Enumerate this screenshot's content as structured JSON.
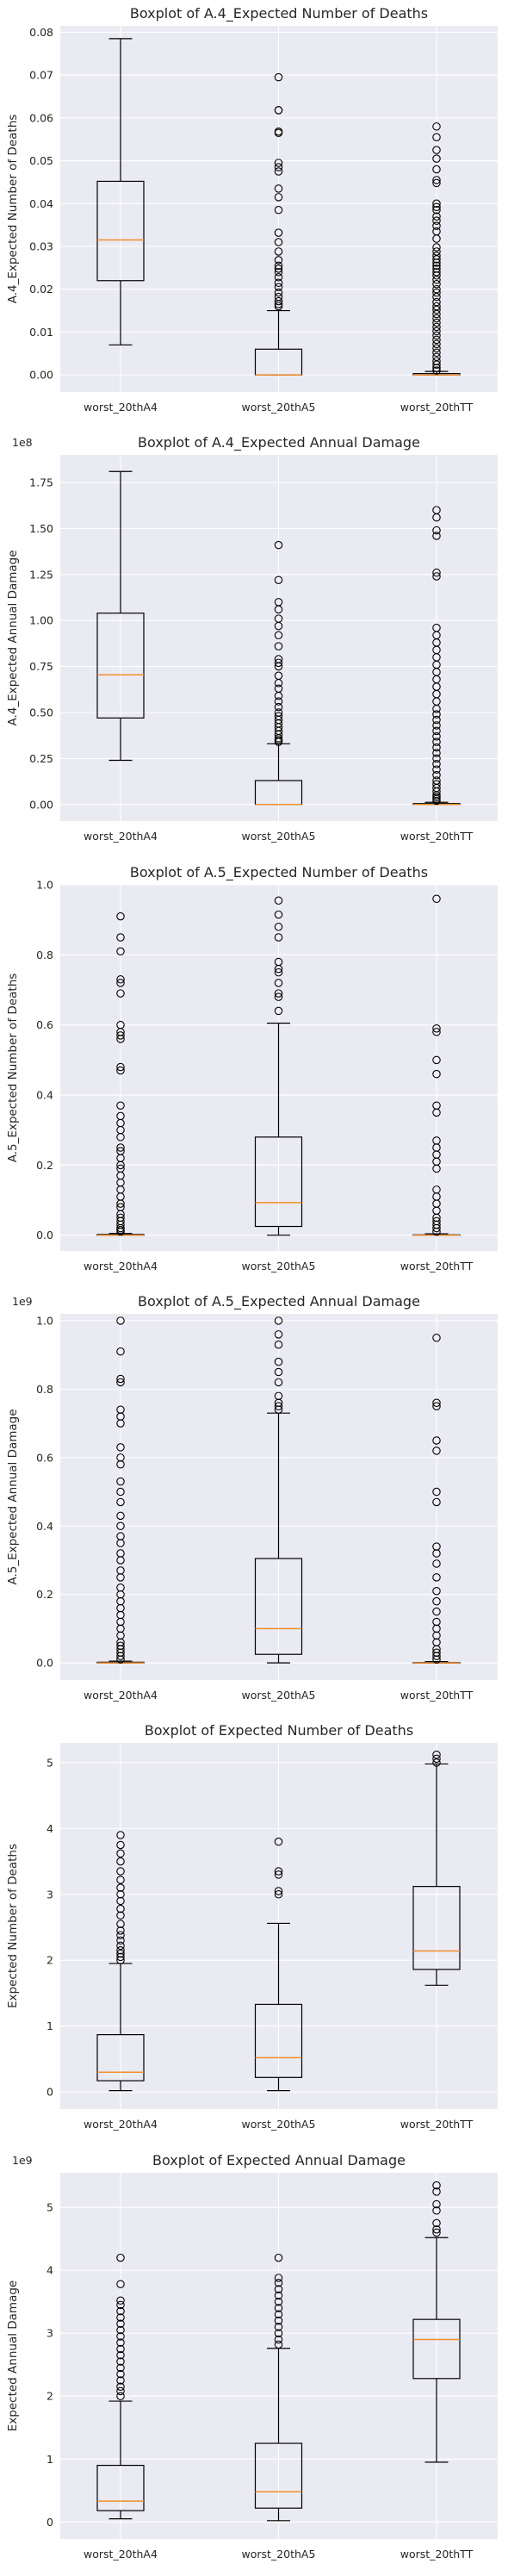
{
  "categories": [
    "worst_20thA4",
    "worst_20thA5",
    "worst_20thTT"
  ],
  "colors": {
    "plot_bg": "#eaeaf2",
    "grid": "#ffffff",
    "median": "#f28e2b",
    "box": "#000000"
  },
  "chart_data": [
    {
      "type": "box",
      "title": "Boxplot of A.4_Expected Number of Deaths",
      "ylabel": "A.4_Expected Number of Deaths",
      "multiplier": "",
      "ylim": [
        -0.004,
        0.0815
      ],
      "yticks": [
        0.0,
        0.01,
        0.02,
        0.03,
        0.04,
        0.05,
        0.06,
        0.07,
        0.08
      ],
      "yticklabels": [
        "0.00",
        "0.01",
        "0.02",
        "0.03",
        "0.04",
        "0.05",
        "0.06",
        "0.07",
        "0.08"
      ],
      "boxes": [
        {
          "whislo": 0.007,
          "q1": 0.022,
          "med": 0.0315,
          "q3": 0.0452,
          "whishi": 0.0785,
          "fliers": []
        },
        {
          "whislo": 0.0,
          "q1": 0.0,
          "med": 0.0,
          "q3": 0.006,
          "whishi": 0.015,
          "fliers": [
            0.0695,
            0.0618,
            0.0618,
            0.0568,
            0.0565,
            0.0495,
            0.0485,
            0.0475,
            0.0435,
            0.0415,
            0.0385,
            0.0332,
            0.031,
            0.0288,
            0.0268,
            0.0255,
            0.0248,
            0.024,
            0.0228,
            0.0215,
            0.0205,
            0.0192,
            0.0182,
            0.0172,
            0.0165,
            0.016
          ]
        },
        {
          "whislo": 0.0,
          "q1": 0.0,
          "med": 0.0,
          "q3": 0.0003,
          "whishi": 0.0008,
          "fliers": [
            0.058,
            0.0555,
            0.0525,
            0.0505,
            0.048,
            0.0455,
            0.0448,
            0.04,
            0.0392,
            0.0385,
            0.037,
            0.036,
            0.0348,
            0.0335,
            0.0318,
            0.0298,
            0.0288,
            0.0278,
            0.027,
            0.0262,
            0.0255,
            0.0248,
            0.024,
            0.0232,
            0.0222,
            0.0212,
            0.02,
            0.0192,
            0.0182,
            0.017,
            0.016,
            0.0152,
            0.0142,
            0.0132,
            0.0122,
            0.0112,
            0.0102,
            0.0092,
            0.0082,
            0.0072,
            0.0062,
            0.0052,
            0.0042,
            0.0032,
            0.0024,
            0.0016,
            0.001
          ]
        }
      ]
    },
    {
      "type": "box",
      "title": "Boxplot of A.4_Expected Annual Damage",
      "ylabel": "A.4_Expected Annual Damage",
      "multiplier": "1e8",
      "ylim": [
        -0.09,
        1.9
      ],
      "yticks": [
        0.0,
        0.25,
        0.5,
        0.75,
        1.0,
        1.25,
        1.5,
        1.75
      ],
      "yticklabels": [
        "0.00",
        "0.25",
        "0.50",
        "0.75",
        "1.00",
        "1.25",
        "1.50",
        "1.75"
      ],
      "boxes": [
        {
          "whislo": 0.24,
          "q1": 0.47,
          "med": 0.705,
          "q3": 1.04,
          "whishi": 1.81,
          "fliers": []
        },
        {
          "whislo": 0.0,
          "q1": 0.0,
          "med": 0.0,
          "q3": 0.13,
          "whishi": 0.33,
          "fliers": [
            1.41,
            1.22,
            1.1,
            1.06,
            1.01,
            0.97,
            0.92,
            0.86,
            0.79,
            0.77,
            0.75,
            0.7,
            0.66,
            0.63,
            0.59,
            0.56,
            0.53,
            0.5,
            0.48,
            0.46,
            0.44,
            0.42,
            0.4,
            0.38,
            0.36,
            0.35,
            0.34
          ]
        },
        {
          "whislo": 0.0,
          "q1": 0.0,
          "med": 0.0,
          "q3": 0.005,
          "whishi": 0.012,
          "fliers": [
            1.6,
            1.56,
            1.49,
            1.46,
            1.26,
            1.24,
            0.96,
            0.92,
            0.88,
            0.84,
            0.8,
            0.76,
            0.72,
            0.68,
            0.64,
            0.6,
            0.56,
            0.52,
            0.49,
            0.46,
            0.43,
            0.4,
            0.37,
            0.34,
            0.31,
            0.28,
            0.25,
            0.22,
            0.19,
            0.16,
            0.13,
            0.11,
            0.09,
            0.07,
            0.05,
            0.04,
            0.03,
            0.02
          ]
        }
      ]
    },
    {
      "type": "box",
      "title": "Boxplot of A.5_Expected Number of Deaths",
      "ylabel": "A.5_Expected Number of Deaths",
      "multiplier": "",
      "ylim": [
        -0.045,
        1.0
      ],
      "yticks": [
        0.0,
        0.2,
        0.4,
        0.6,
        0.8,
        1.0
      ],
      "yticklabels": [
        "0.0",
        "0.2",
        "0.4",
        "0.6",
        "0.8",
        "1.0"
      ],
      "boxes": [
        {
          "whislo": 0.0,
          "q1": 0.0,
          "med": 0.0,
          "q3": 0.002,
          "whishi": 0.005,
          "fliers": [
            0.91,
            0.85,
            0.81,
            0.73,
            0.72,
            0.69,
            0.6,
            0.58,
            0.57,
            0.56,
            0.48,
            0.47,
            0.37,
            0.34,
            0.32,
            0.3,
            0.28,
            0.25,
            0.24,
            0.22,
            0.2,
            0.19,
            0.17,
            0.15,
            0.13,
            0.11,
            0.09,
            0.08,
            0.06,
            0.05,
            0.04,
            0.03,
            0.02,
            0.015,
            0.01
          ]
        },
        {
          "whislo": 0.0,
          "q1": 0.025,
          "med": 0.093,
          "q3": 0.28,
          "whishi": 0.605,
          "fliers": [
            0.955,
            0.915,
            0.88,
            0.85,
            0.78,
            0.76,
            0.75,
            0.72,
            0.69,
            0.68,
            0.64
          ]
        },
        {
          "whislo": 0.0,
          "q1": 0.0,
          "med": 0.0,
          "q3": 0.001,
          "whishi": 0.004,
          "fliers": [
            0.96,
            0.59,
            0.58,
            0.5,
            0.46,
            0.37,
            0.35,
            0.27,
            0.25,
            0.23,
            0.21,
            0.19,
            0.13,
            0.11,
            0.09,
            0.07,
            0.05,
            0.04,
            0.03,
            0.02,
            0.01
          ]
        }
      ]
    },
    {
      "type": "box",
      "title": "Boxplot of A.5_Expected Annual Damage",
      "ylabel": "A.5_Expected Annual Damage",
      "multiplier": "1e9",
      "ylim": [
        -0.05,
        1.02
      ],
      "yticks": [
        0.0,
        0.2,
        0.4,
        0.6,
        0.8,
        1.0
      ],
      "yticklabels": [
        "0.0",
        "0.2",
        "0.4",
        "0.6",
        "0.8",
        "1.0"
      ],
      "boxes": [
        {
          "whislo": 0.0,
          "q1": 0.0,
          "med": 0.0,
          "q3": 0.002,
          "whishi": 0.005,
          "fliers": [
            1.0,
            0.91,
            0.83,
            0.82,
            0.74,
            0.72,
            0.7,
            0.63,
            0.6,
            0.58,
            0.53,
            0.5,
            0.47,
            0.43,
            0.4,
            0.37,
            0.35,
            0.32,
            0.3,
            0.27,
            0.25,
            0.22,
            0.2,
            0.18,
            0.16,
            0.14,
            0.12,
            0.1,
            0.08,
            0.06,
            0.05,
            0.04,
            0.03,
            0.02,
            0.01
          ]
        },
        {
          "whislo": 0.0,
          "q1": 0.025,
          "med": 0.1,
          "q3": 0.305,
          "whishi": 0.73,
          "fliers": [
            1.0,
            0.96,
            0.93,
            0.88,
            0.85,
            0.82,
            0.78,
            0.76,
            0.75,
            0.74
          ]
        },
        {
          "whislo": 0.0,
          "q1": 0.0,
          "med": 0.0,
          "q3": 0.001,
          "whishi": 0.004,
          "fliers": [
            0.95,
            0.76,
            0.75,
            0.65,
            0.62,
            0.5,
            0.47,
            0.34,
            0.32,
            0.29,
            0.25,
            0.21,
            0.18,
            0.15,
            0.12,
            0.1,
            0.08,
            0.06,
            0.04,
            0.03,
            0.02,
            0.01
          ]
        }
      ]
    },
    {
      "type": "box",
      "title": "Boxplot of Expected Number of Deaths",
      "ylabel": "Expected Number of Deaths",
      "multiplier": "",
      "ylim": [
        -0.26,
        5.3
      ],
      "yticks": [
        0,
        1,
        2,
        3,
        4,
        5
      ],
      "yticklabels": [
        "0",
        "1",
        "2",
        "3",
        "4",
        "5"
      ],
      "boxes": [
        {
          "whislo": 0.02,
          "q1": 0.17,
          "med": 0.3,
          "q3": 0.87,
          "whishi": 1.95,
          "fliers": [
            3.9,
            3.75,
            3.62,
            3.5,
            3.35,
            3.22,
            3.1,
            3.0,
            2.9,
            2.78,
            2.68,
            2.55,
            2.45,
            2.38,
            2.3,
            2.22,
            2.15,
            2.1,
            2.05,
            2.0
          ]
        },
        {
          "whislo": 0.02,
          "q1": 0.22,
          "med": 0.52,
          "q3": 1.33,
          "whishi": 2.56,
          "fliers": [
            3.8,
            3.35,
            3.3,
            3.05,
            3.0
          ]
        },
        {
          "whislo": 1.62,
          "q1": 1.86,
          "med": 2.14,
          "q3": 3.12,
          "whishi": 4.98,
          "fliers": [
            5.12,
            5.06,
            5.0
          ]
        }
      ]
    },
    {
      "type": "box",
      "title": "Boxplot of Expected Annual Damage",
      "ylabel": "Expected Annual Damage",
      "multiplier": "1e9",
      "ylim": [
        -0.27,
        5.55
      ],
      "yticks": [
        0,
        1,
        2,
        3,
        4,
        5
      ],
      "yticklabels": [
        "0",
        "1",
        "2",
        "3",
        "4",
        "5"
      ],
      "boxes": [
        {
          "whislo": 0.05,
          "q1": 0.18,
          "med": 0.33,
          "q3": 0.9,
          "whishi": 1.92,
          "fliers": [
            4.2,
            3.78,
            3.52,
            3.45,
            3.35,
            3.25,
            3.15,
            3.05,
            2.95,
            2.85,
            2.75,
            2.65,
            2.55,
            2.45,
            2.35,
            2.25,
            2.15,
            2.08,
            2.0
          ]
        },
        {
          "whislo": 0.02,
          "q1": 0.22,
          "med": 0.48,
          "q3": 1.25,
          "whishi": 2.76,
          "fliers": [
            4.2,
            3.88,
            3.8,
            3.7,
            3.6,
            3.5,
            3.4,
            3.3,
            3.2,
            3.1,
            3.0,
            2.9,
            2.82
          ]
        },
        {
          "whislo": 0.95,
          "q1": 2.28,
          "med": 2.9,
          "q3": 3.22,
          "whishi": 4.52,
          "fliers": [
            5.35,
            5.25,
            5.05,
            4.95,
            4.75,
            4.65,
            4.6
          ]
        }
      ]
    }
  ]
}
